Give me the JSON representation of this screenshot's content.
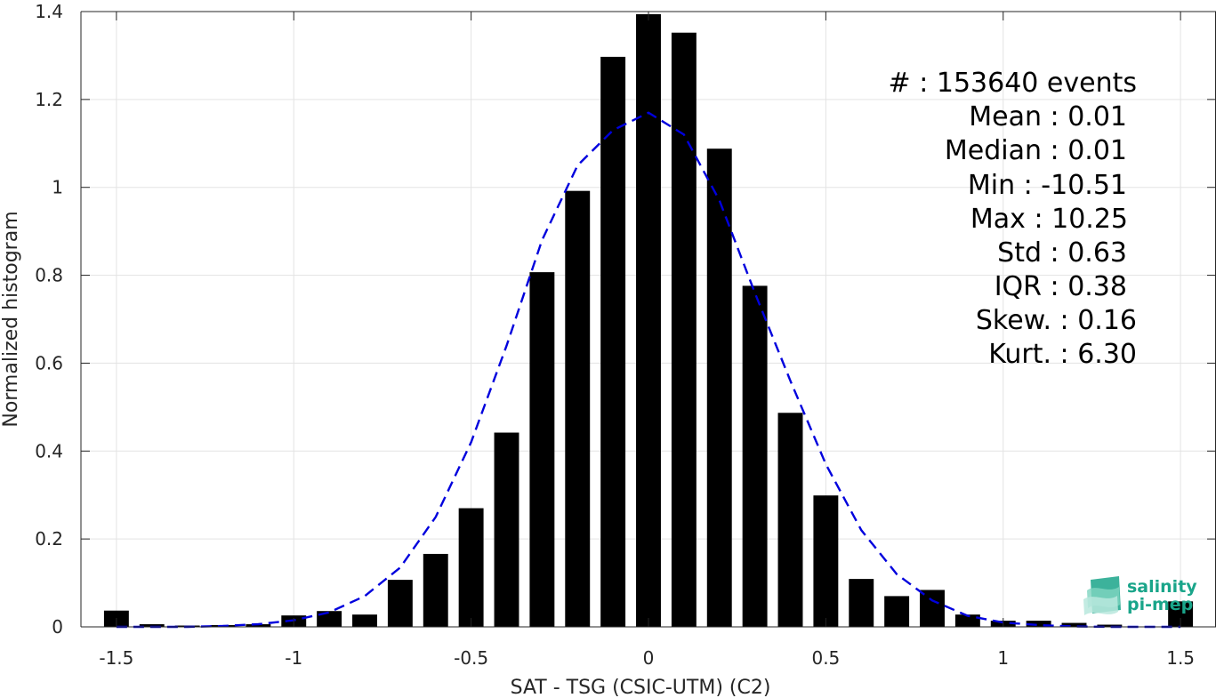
{
  "chart_data": {
    "type": "bar",
    "xlabel": "SAT - TSG (CSIC-UTM) (C2)",
    "ylabel": "Normalized histogram",
    "xlim": [
      -1.6,
      1.6
    ],
    "ylim": [
      0,
      1.4
    ],
    "xticks": [
      -1.5,
      -1,
      -0.5,
      0,
      0.5,
      1,
      1.5
    ],
    "xtick_labels": [
      "-1.5",
      "-1",
      "-0.5",
      "0",
      "0.5",
      "1",
      "1.5"
    ],
    "yticks": [
      0,
      0.2,
      0.4,
      0.6,
      0.8,
      1,
      1.2,
      1.4
    ],
    "ytick_labels": [
      "0",
      "0.2",
      "0.4",
      "0.6",
      "0.8",
      "1",
      "1.2",
      "1.4"
    ],
    "grid": true,
    "bar_color": "#000000",
    "bins": [
      -1.5,
      -1.4,
      -1.3,
      -1.2,
      -1.1,
      -1.0,
      -0.9,
      -0.8,
      -0.7,
      -0.6,
      -0.5,
      -0.4,
      -0.3,
      -0.2,
      -0.1,
      0.0,
      0.1,
      0.2,
      0.3,
      0.4,
      0.5,
      0.6,
      0.7,
      0.8,
      0.9,
      1.0,
      1.1,
      1.2,
      1.3,
      1.4,
      1.5
    ],
    "values": [
      0.037,
      0.006,
      0.003,
      0.004,
      0.006,
      0.026,
      0.036,
      0.028,
      0.107,
      0.166,
      0.27,
      0.442,
      0.807,
      0.992,
      1.297,
      1.394,
      1.352,
      1.088,
      0.776,
      0.487,
      0.299,
      0.109,
      0.07,
      0.084,
      0.028,
      0.014,
      0.014,
      0.009,
      0.005,
      0.0,
      0.058
    ],
    "fit": {
      "style": "dashed",
      "color": "#0000dd",
      "x": [
        -1.5,
        -1.4,
        -1.3,
        -1.2,
        -1.1,
        -1.0,
        -0.9,
        -0.8,
        -0.7,
        -0.6,
        -0.5,
        -0.4,
        -0.3,
        -0.2,
        -0.1,
        0.0,
        0.1,
        0.2,
        0.3,
        0.4,
        0.5,
        0.6,
        0.7,
        0.8,
        0.9,
        1.0,
        1.1,
        1.2,
        1.3,
        1.4,
        1.5
      ],
      "y": [
        0.0,
        0.0,
        0.0,
        0.002,
        0.006,
        0.015,
        0.033,
        0.07,
        0.135,
        0.25,
        0.42,
        0.64,
        0.88,
        1.05,
        1.13,
        1.17,
        1.12,
        0.97,
        0.76,
        0.56,
        0.37,
        0.22,
        0.12,
        0.06,
        0.025,
        0.01,
        0.004,
        0.001,
        0.0,
        0.0,
        0.0
      ]
    }
  },
  "stats": [
    {
      "label": "#  : 153640 events"
    },
    {
      "label": "Mean : 0.01"
    },
    {
      "label": "Median : 0.01"
    },
    {
      "label": "Min : -10.51"
    },
    {
      "label": "Max : 10.25"
    },
    {
      "label": "Std : 0.63"
    },
    {
      "label": "IQR : 0.38"
    },
    {
      "label": "Skew. : 0.16"
    },
    {
      "label": "Kurt. : 6.30"
    }
  ],
  "logo": {
    "line1": "salinity",
    "line2": "pi-mep",
    "accent_color": "#1aa58a"
  }
}
